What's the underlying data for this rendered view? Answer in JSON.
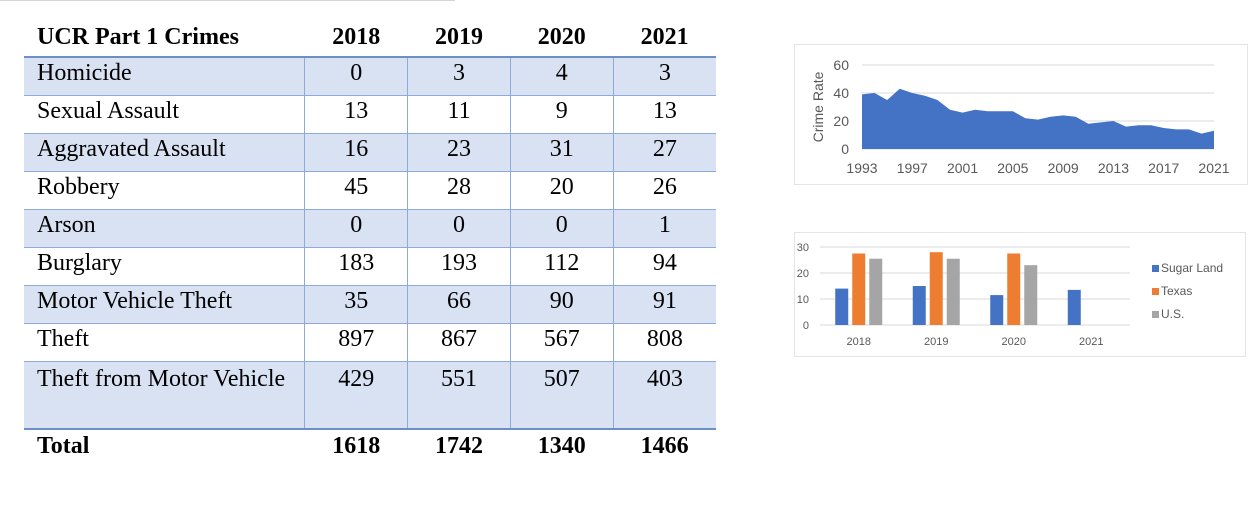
{
  "table": {
    "header": {
      "label": "UCR Part 1 Crimes",
      "years": [
        "2018",
        "2019",
        "2020",
        "2021"
      ]
    },
    "rows": [
      {
        "name": "Homicide",
        "values": [
          "0",
          "3",
          "4",
          "3"
        ]
      },
      {
        "name": "Sexual Assault",
        "values": [
          "13",
          "11",
          "9",
          "13"
        ]
      },
      {
        "name": "Aggravated Assault",
        "values": [
          "16",
          "23",
          "31",
          "27"
        ]
      },
      {
        "name": "Robbery",
        "values": [
          "45",
          "28",
          "20",
          "26"
        ]
      },
      {
        "name": "Arson",
        "values": [
          "0",
          "0",
          "0",
          "1"
        ]
      },
      {
        "name": "Burglary",
        "values": [
          "183",
          "193",
          "112",
          "94"
        ]
      },
      {
        "name": "Motor Vehicle Theft",
        "values": [
          "35",
          "66",
          "90",
          "91"
        ]
      },
      {
        "name": "Theft",
        "values": [
          "897",
          "867",
          "567",
          "808"
        ]
      },
      {
        "name": "Theft from Motor Vehicle",
        "values": [
          "429",
          "551",
          "507",
          "403"
        ]
      }
    ],
    "total": {
      "name": "Total",
      "values": [
        "1618",
        "1742",
        "1340",
        "1466"
      ]
    }
  },
  "colors": {
    "header_rule": "#6d8fc4",
    "row_shade": "#d9e2f3",
    "area_fill": "#4472c4",
    "sugar_land": "#4472c4",
    "texas": "#ed7d31",
    "us": "#a5a5a5"
  },
  "chart_data": [
    {
      "type": "area",
      "title": "",
      "xlabel": "",
      "ylabel": "Crime Rate",
      "x": [
        1993,
        1994,
        1995,
        1996,
        1997,
        1998,
        1999,
        2000,
        2001,
        2002,
        2003,
        2004,
        2005,
        2006,
        2007,
        2008,
        2009,
        2010,
        2011,
        2012,
        2013,
        2014,
        2015,
        2016,
        2017,
        2018,
        2019,
        2020,
        2021
      ],
      "y": [
        39,
        40,
        35,
        43,
        40,
        38,
        35,
        28,
        26,
        28,
        27,
        27,
        27,
        22,
        21,
        23,
        24,
        23,
        18,
        19,
        20,
        16,
        17,
        17,
        15,
        14,
        14,
        11,
        13
      ],
      "xticks": [
        "1993",
        "1997",
        "2001",
        "2005",
        "2009",
        "2013",
        "2017",
        "2021"
      ],
      "yticks": [
        "0",
        "20",
        "40",
        "60"
      ],
      "ylim": [
        0,
        60
      ],
      "grid": true
    },
    {
      "type": "bar",
      "title": "",
      "xlabel": "",
      "ylabel": "",
      "categories": [
        "2018",
        "2019",
        "2020",
        "2021"
      ],
      "series": [
        {
          "name": "Sugar Land",
          "values": [
            14,
            15,
            11.5,
            13.5
          ]
        },
        {
          "name": "Texas",
          "values": [
            27.5,
            28,
            27.5,
            null
          ]
        },
        {
          "name": "U.S.",
          "values": [
            25.5,
            25.5,
            23,
            null
          ]
        }
      ],
      "yticks": [
        "0",
        "10",
        "20",
        "30"
      ],
      "ylim": [
        0,
        30
      ],
      "legend": "right",
      "grid": true
    }
  ]
}
